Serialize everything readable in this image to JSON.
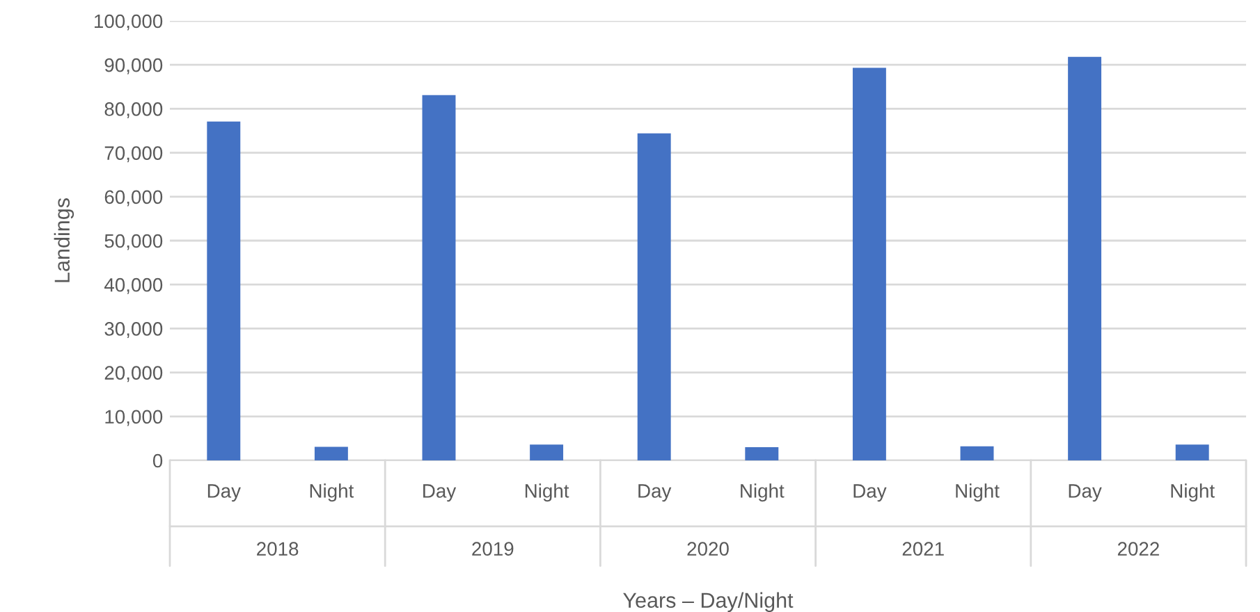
{
  "chart_data": {
    "type": "bar",
    "xlabel": "Years – Day/Night",
    "ylabel": "Landings",
    "categories": [
      "Day",
      "Night",
      "Day",
      "Night",
      "Day",
      "Night",
      "Day",
      "Night",
      "Day",
      "Night"
    ],
    "values": [
      77100,
      3100,
      83100,
      3600,
      74400,
      3000,
      89300,
      3200,
      91800,
      3600
    ],
    "color": "#4472c4",
    "annotations": [
      "2018",
      "2019",
      "2020",
      "2021",
      "2022"
    ],
    "ylim": [
      0,
      100000
    ],
    "yticks": [
      {
        "value": 0,
        "label": "0"
      },
      {
        "value": 10000,
        "label": "10,000"
      },
      {
        "value": 20000,
        "label": "20,000"
      },
      {
        "value": 30000,
        "label": "30,000"
      },
      {
        "value": 40000,
        "label": "40,000"
      },
      {
        "value": 50000,
        "label": "50,000"
      },
      {
        "value": 60000,
        "label": "60,000"
      },
      {
        "value": 70000,
        "label": "70,000"
      },
      {
        "value": 80000,
        "label": "80,000"
      },
      {
        "value": 90000,
        "label": "90,000"
      },
      {
        "value": 100000,
        "label": "100,000"
      }
    ],
    "grid": "y",
    "legend": false
  }
}
